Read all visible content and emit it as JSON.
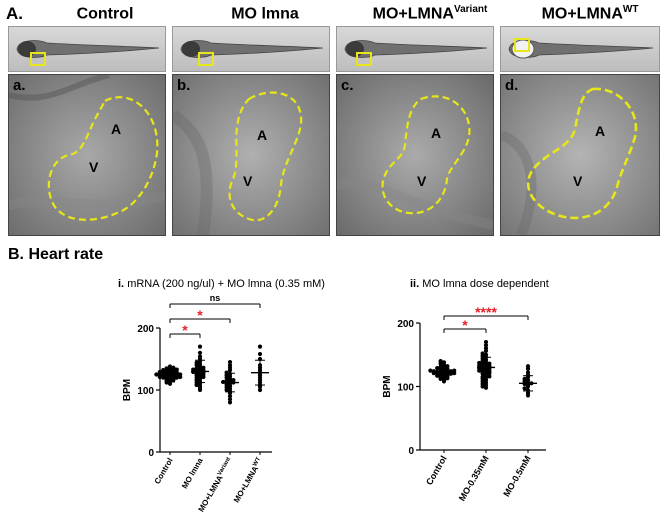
{
  "figure": {
    "panel_a_label": "A.",
    "panel_b_label": "B. Heart rate",
    "columns": [
      {
        "title": "Control",
        "sup": ""
      },
      {
        "title": "MO lmna",
        "sup": ""
      },
      {
        "title": "MO+LMNA",
        "sup": "Variant"
      },
      {
        "title": "MO+LMNA",
        "sup": "WT"
      }
    ],
    "image_letters": [
      "a.",
      "b.",
      "c.",
      "d."
    ],
    "chamber_labels": {
      "atrium": "A",
      "ventricle": "V"
    },
    "outline_color": "#e6e61a",
    "box_color": "#e6e61a"
  },
  "chart_data": [
    {
      "type": "scatter",
      "title_prefix": "i.",
      "title": "mRNA (200 ng/ul) + MO lmna (0.35 mM)",
      "ylabel": "BPM",
      "ylim": [
        0,
        200
      ],
      "yticks": [
        0,
        100,
        200
      ],
      "categories": [
        {
          "label": "Control",
          "sup": ""
        },
        {
          "label": "MO lmna",
          "sup": ""
        },
        {
          "label": "MO+LMNA",
          "sup": "Variant"
        },
        {
          "label": "MO+LMNA",
          "sup": "WT"
        }
      ],
      "means": [
        123,
        130,
        112,
        128
      ],
      "sds": [
        10,
        18,
        15,
        20
      ],
      "points": [
        [
          110,
          112,
          114,
          115,
          116,
          118,
          118,
          119,
          120,
          120,
          121,
          121,
          122,
          122,
          123,
          123,
          124,
          124,
          125,
          125,
          126,
          126,
          127,
          128,
          128,
          129,
          130,
          130,
          131,
          132,
          133,
          134,
          135,
          136,
          138
        ],
        [
          100,
          103,
          106,
          108,
          110,
          112,
          114,
          116,
          118,
          120,
          121,
          122,
          124,
          125,
          126,
          127,
          128,
          129,
          130,
          131,
          132,
          133,
          134,
          135,
          136,
          138,
          140,
          142,
          144,
          146,
          150,
          154,
          160,
          170
        ],
        [
          80,
          85,
          90,
          95,
          98,
          100,
          102,
          104,
          106,
          108,
          110,
          111,
          112,
          113,
          114,
          115,
          116,
          118,
          120,
          122,
          124,
          126,
          128,
          132,
          136,
          140,
          145
        ],
        [
          100,
          105,
          108,
          112,
          116,
          120,
          124,
          128,
          132,
          136,
          140,
          150,
          158,
          170
        ]
      ],
      "significance": [
        {
          "from": 0,
          "to": 1,
          "label": "*",
          "color": "#e8202a"
        },
        {
          "from": 0,
          "to": 2,
          "label": "*",
          "color": "#e8202a"
        },
        {
          "from": 0,
          "to": 3,
          "label": "ns",
          "color": "#000000"
        }
      ]
    },
    {
      "type": "scatter",
      "title_prefix": "ii.",
      "title": "MO lmna dose dependent",
      "ylabel": "BPM",
      "ylim": [
        0,
        200
      ],
      "yticks": [
        0,
        100,
        200
      ],
      "categories": [
        {
          "label": "Control",
          "sup": ""
        },
        {
          "label": "MO-0.35mM",
          "sup": ""
        },
        {
          "label": "MO-0.5mM",
          "sup": ""
        }
      ],
      "means": [
        123,
        130,
        105
      ],
      "sds": [
        10,
        16,
        12
      ],
      "points": [
        [
          108,
          110,
          112,
          113,
          114,
          115,
          116,
          117,
          118,
          118,
          119,
          120,
          120,
          121,
          121,
          122,
          122,
          123,
          123,
          124,
          124,
          125,
          125,
          126,
          127,
          128,
          129,
          130,
          131,
          132,
          134,
          136,
          138,
          140
        ],
        [
          98,
          100,
          102,
          104,
          106,
          108,
          110,
          112,
          114,
          115,
          116,
          118,
          120,
          121,
          122,
          123,
          124,
          125,
          126,
          127,
          128,
          129,
          130,
          131,
          132,
          133,
          134,
          135,
          136,
          137,
          138,
          140,
          142,
          144,
          146,
          148,
          150,
          152,
          156,
          160,
          165,
          170
        ],
        [
          86,
          90,
          94,
          97,
          100,
          102,
          104,
          105,
          106,
          108,
          110,
          112,
          115,
          118,
          122,
          128,
          132
        ]
      ],
      "significance": [
        {
          "from": 0,
          "to": 1,
          "label": "*",
          "color": "#e8202a"
        },
        {
          "from": 0,
          "to": 2,
          "label": "****",
          "color": "#e8202a"
        }
      ]
    }
  ]
}
